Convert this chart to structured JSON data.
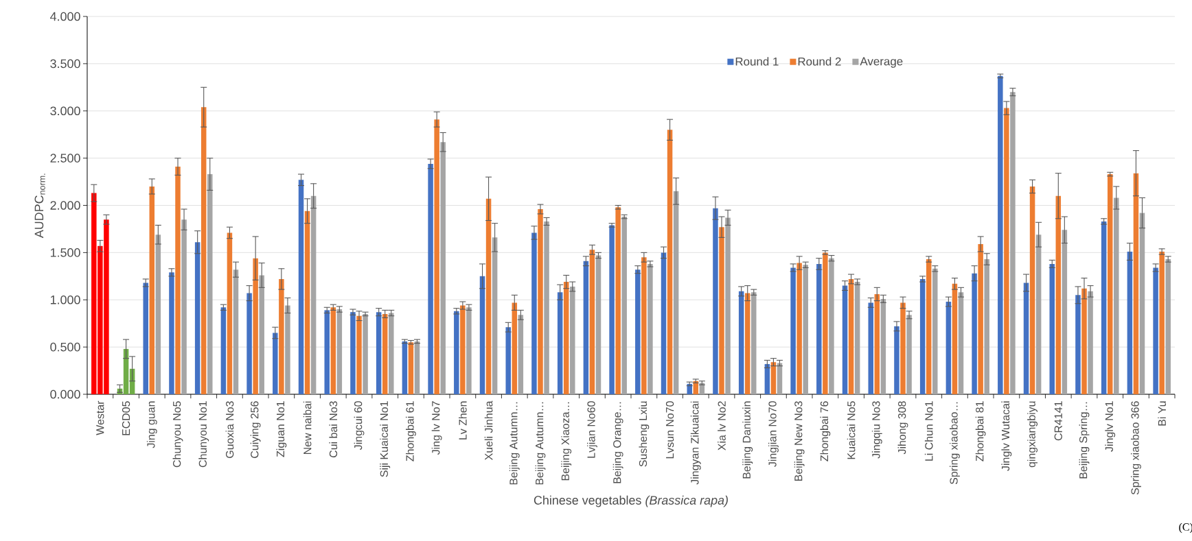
{
  "chart_data": {
    "type": "bar",
    "xlabel": "Chinese vegetables *(Brassica rapa)*",
    "ylabel": "AUDPC$_{norm.}$",
    "categories": [
      "Westar",
      "ECD05",
      "Jing guan",
      "Chunyou No5",
      "Chunyou No1",
      "Guoxia No3",
      "Cuiying 256",
      "Ziguan No1",
      "New naibai",
      "Cui bai No3",
      "Jingcui 60",
      "Siji Kuaicai No1",
      "Zhongbai 61",
      "Jing lv No7",
      "Lv Zhen",
      "Xueli Jinhua",
      "Beijing Autumn…",
      "Beijing Autumn…",
      "Beijing Xiaoza…",
      "Lvjian No60",
      "Beijing Orange…",
      "Susheng Lxiu",
      "Lvsun No70",
      "Jingyan Zikuaicai",
      "Xia lv No2",
      "Beijing Daniuxin",
      "Jingjian No70",
      "Beijing New No3",
      "Zhongbai 76",
      "Kuaicai No5",
      "Jingqiu No3",
      "Jihong 308",
      "Li Chun No1",
      "Spring xiaobao…",
      "Zhongbai 81",
      "Jinglv Wutacai",
      "qingxiangbiyu",
      "CR4141",
      "Beijing Spring…",
      "Jinglv No1",
      "Spring xiaobao 366",
      "Bi Yu"
    ],
    "series": [
      {
        "name": "Round 1",
        "color": "#4472c4",
        "colors": [
          "#ff0000",
          "#70ad47",
          "#4472c4",
          "#4472c4",
          "#4472c4",
          "#4472c4",
          "#4472c4",
          "#4472c4",
          "#4472c4",
          "#4472c4",
          "#4472c4",
          "#4472c4",
          "#4472c4",
          "#4472c4",
          "#4472c4",
          "#4472c4",
          "#4472c4",
          "#4472c4",
          "#4472c4",
          "#4472c4",
          "#4472c4",
          "#4472c4",
          "#4472c4",
          "#4472c4",
          "#4472c4",
          "#4472c4",
          "#4472c4",
          "#4472c4",
          "#4472c4",
          "#4472c4",
          "#4472c4",
          "#4472c4",
          "#4472c4",
          "#4472c4",
          "#4472c4",
          "#4472c4",
          "#4472c4",
          "#4472c4",
          "#4472c4",
          "#4472c4",
          "#4472c4",
          "#4472c4"
        ],
        "values": [
          2.13,
          0.06,
          1.18,
          1.29,
          1.61,
          0.92,
          1.07,
          0.65,
          2.27,
          0.89,
          0.87,
          0.87,
          0.56,
          2.44,
          0.88,
          1.25,
          0.71,
          1.71,
          1.08,
          1.41,
          1.79,
          1.32,
          1.5,
          0.11,
          1.97,
          1.09,
          0.32,
          1.34,
          1.38,
          1.15,
          0.97,
          0.72,
          1.22,
          0.98,
          1.28,
          3.37,
          1.18,
          1.38,
          1.05,
          1.83,
          1.51,
          1.34
        ],
        "errors": [
          0.09,
          0.04,
          0.04,
          0.04,
          0.12,
          0.03,
          0.08,
          0.06,
          0.06,
          0.03,
          0.03,
          0.04,
          0.02,
          0.05,
          0.03,
          0.13,
          0.05,
          0.07,
          0.08,
          0.05,
          0.02,
          0.04,
          0.06,
          0.02,
          0.12,
          0.05,
          0.04,
          0.04,
          0.06,
          0.05,
          0.05,
          0.05,
          0.03,
          0.05,
          0.08,
          0.02,
          0.09,
          0.04,
          0.09,
          0.03,
          0.09,
          0.04
        ]
      },
      {
        "name": "Round 2",
        "color": "#ed7d31",
        "colors": [
          "#ff0000",
          "#70ad47",
          "#ed7d31",
          "#ed7d31",
          "#ed7d31",
          "#ed7d31",
          "#ed7d31",
          "#ed7d31",
          "#ed7d31",
          "#ed7d31",
          "#ed7d31",
          "#ed7d31",
          "#ed7d31",
          "#ed7d31",
          "#ed7d31",
          "#ed7d31",
          "#ed7d31",
          "#ed7d31",
          "#ed7d31",
          "#ed7d31",
          "#ed7d31",
          "#ed7d31",
          "#ed7d31",
          "#ed7d31",
          "#ed7d31",
          "#ed7d31",
          "#ed7d31",
          "#ed7d31",
          "#ed7d31",
          "#ed7d31",
          "#ed7d31",
          "#ed7d31",
          "#ed7d31",
          "#ed7d31",
          "#ed7d31",
          "#ed7d31",
          "#ed7d31",
          "#ed7d31",
          "#ed7d31",
          "#ed7d31",
          "#ed7d31",
          "#ed7d31"
        ],
        "values": [
          1.57,
          0.48,
          2.2,
          2.41,
          3.04,
          1.71,
          1.44,
          1.22,
          1.94,
          0.92,
          0.83,
          0.85,
          0.55,
          2.91,
          0.94,
          2.07,
          0.97,
          1.96,
          1.19,
          1.53,
          1.98,
          1.45,
          2.8,
          0.14,
          1.77,
          1.07,
          0.34,
          1.39,
          1.5,
          1.22,
          1.06,
          0.97,
          1.43,
          1.17,
          1.59,
          3.03,
          2.2,
          2.1,
          1.12,
          2.33,
          2.34,
          1.51
        ],
        "errors": [
          0.06,
          0.1,
          0.08,
          0.09,
          0.21,
          0.06,
          0.23,
          0.11,
          0.13,
          0.03,
          0.05,
          0.04,
          0.02,
          0.08,
          0.04,
          0.23,
          0.08,
          0.05,
          0.07,
          0.05,
          0.02,
          0.05,
          0.11,
          0.02,
          0.11,
          0.08,
          0.04,
          0.07,
          0.02,
          0.05,
          0.07,
          0.06,
          0.03,
          0.06,
          0.08,
          0.07,
          0.07,
          0.24,
          0.11,
          0.02,
          0.24,
          0.03
        ]
      },
      {
        "name": "Average",
        "color": "#a5a5a5",
        "colors": [
          "#ff0000",
          "#70ad47",
          "#a5a5a5",
          "#a5a5a5",
          "#a5a5a5",
          "#a5a5a5",
          "#a5a5a5",
          "#a5a5a5",
          "#a5a5a5",
          "#a5a5a5",
          "#a5a5a5",
          "#a5a5a5",
          "#a5a5a5",
          "#a5a5a5",
          "#a5a5a5",
          "#a5a5a5",
          "#a5a5a5",
          "#a5a5a5",
          "#a5a5a5",
          "#a5a5a5",
          "#a5a5a5",
          "#a5a5a5",
          "#a5a5a5",
          "#a5a5a5",
          "#a5a5a5",
          "#a5a5a5",
          "#a5a5a5",
          "#a5a5a5",
          "#a5a5a5",
          "#a5a5a5",
          "#a5a5a5",
          "#a5a5a5",
          "#a5a5a5",
          "#a5a5a5",
          "#a5a5a5",
          "#a5a5a5",
          "#a5a5a5",
          "#a5a5a5",
          "#a5a5a5",
          "#a5a5a5",
          "#a5a5a5",
          "#a5a5a5"
        ],
        "values": [
          1.85,
          0.27,
          1.69,
          1.85,
          2.33,
          1.32,
          1.26,
          0.94,
          2.1,
          0.9,
          0.85,
          0.86,
          0.56,
          2.67,
          0.92,
          1.66,
          0.84,
          1.83,
          1.14,
          1.47,
          1.88,
          1.38,
          2.15,
          0.12,
          1.87,
          1.08,
          0.33,
          1.37,
          1.44,
          1.19,
          1.01,
          0.84,
          1.33,
          1.08,
          1.43,
          3.2,
          1.69,
          1.74,
          1.09,
          2.08,
          1.92,
          1.43
        ],
        "errors": [
          0.05,
          0.13,
          0.1,
          0.11,
          0.17,
          0.08,
          0.13,
          0.08,
          0.13,
          0.03,
          0.02,
          0.03,
          0.02,
          0.1,
          0.03,
          0.15,
          0.05,
          0.04,
          0.05,
          0.03,
          0.02,
          0.03,
          0.14,
          0.02,
          0.08,
          0.03,
          0.03,
          0.03,
          0.03,
          0.03,
          0.04,
          0.04,
          0.03,
          0.05,
          0.06,
          0.04,
          0.13,
          0.14,
          0.06,
          0.12,
          0.16,
          0.03
        ]
      }
    ],
    "ylim": [
      0,
      4
    ],
    "yticks": [
      {
        "value": 0,
        "label": "0.000"
      },
      {
        "value": 0.5,
        "label": "0.500"
      },
      {
        "value": 1,
        "label": "1.000"
      },
      {
        "value": 1.5,
        "label": "1.500"
      },
      {
        "value": 2,
        "label": "2.000"
      },
      {
        "value": 2.5,
        "label": "2.500"
      },
      {
        "value": 3,
        "label": "3.000"
      },
      {
        "value": 3.5,
        "label": "3.500"
      },
      {
        "value": 4,
        "label": "4.000"
      }
    ],
    "grid": "y",
    "legend": "top right",
    "annotations": [
      "(C)"
    ]
  }
}
